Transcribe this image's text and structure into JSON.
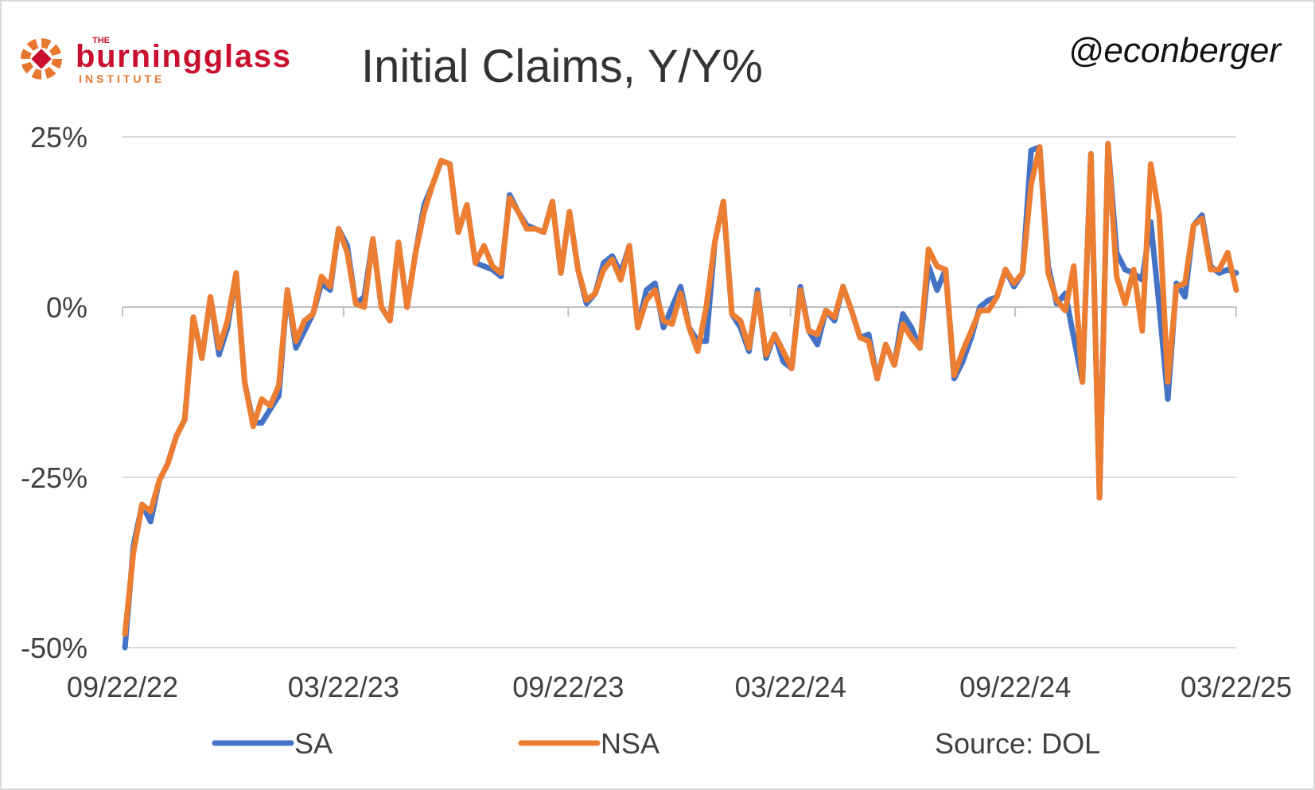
{
  "logo": {
    "top": "THE",
    "brand": "burningglass",
    "sub": "INSTITUTE"
  },
  "handle": "@econberger",
  "source": "Source: DOL",
  "chart_data": {
    "type": "line",
    "title": "Initial Claims, Y/Y%",
    "x": [
      "09/24/22",
      "10/01/22",
      "10/08/22",
      "10/15/22",
      "10/22/22",
      "10/29/22",
      "11/05/22",
      "11/12/22",
      "11/19/22",
      "11/26/22",
      "12/03/22",
      "12/10/22",
      "12/17/22",
      "12/24/22",
      "12/31/22",
      "01/07/23",
      "01/14/23",
      "01/21/23",
      "01/28/23",
      "02/04/23",
      "02/11/23",
      "02/18/23",
      "02/25/23",
      "03/04/23",
      "03/11/23",
      "03/18/23",
      "03/25/23",
      "04/01/23",
      "04/08/23",
      "04/15/23",
      "04/22/23",
      "04/29/23",
      "05/06/23",
      "05/13/23",
      "05/20/23",
      "05/27/23",
      "06/03/23",
      "06/10/23",
      "06/17/23",
      "06/24/23",
      "07/01/23",
      "07/08/23",
      "07/15/23",
      "07/22/23",
      "07/29/23",
      "08/05/23",
      "08/12/23",
      "08/19/23",
      "08/26/23",
      "09/02/23",
      "09/09/23",
      "09/16/23",
      "09/23/23",
      "09/30/23",
      "10/07/23",
      "10/14/23",
      "10/21/23",
      "10/28/23",
      "11/04/23",
      "11/11/23",
      "11/18/23",
      "11/25/23",
      "12/02/23",
      "12/09/23",
      "12/16/23",
      "12/23/23",
      "12/30/23",
      "01/06/24",
      "01/13/24",
      "01/20/24",
      "01/27/24",
      "02/03/24",
      "02/10/24",
      "02/17/24",
      "02/24/24",
      "03/02/24",
      "03/09/24",
      "03/16/24",
      "03/23/24",
      "03/30/24",
      "04/06/24",
      "04/13/24",
      "04/20/24",
      "04/27/24",
      "05/04/24",
      "05/11/24",
      "05/18/24",
      "05/25/24",
      "06/01/24",
      "06/08/24",
      "06/15/24",
      "06/22/24",
      "06/29/24",
      "07/06/24",
      "07/13/24",
      "07/20/24",
      "07/27/24",
      "08/03/24",
      "08/10/24",
      "08/17/24",
      "08/24/24",
      "08/31/24",
      "09/07/24",
      "09/14/24",
      "09/21/24",
      "09/28/24",
      "10/05/24",
      "10/12/24",
      "10/19/24",
      "10/26/24",
      "11/02/24",
      "11/09/24",
      "11/16/24",
      "11/23/24",
      "11/30/24",
      "12/07/24",
      "12/14/24",
      "12/21/24",
      "12/28/24",
      "01/04/25",
      "01/11/25",
      "01/18/25",
      "01/25/25",
      "02/01/25",
      "02/08/25",
      "02/15/25",
      "02/22/25",
      "03/01/25",
      "03/08/25",
      "03/15/25",
      "03/22/25"
    ],
    "series": [
      {
        "name": "SA",
        "color": "#4472c4",
        "values": [
          -50,
          -35,
          -29,
          -31.5,
          -25.5,
          -23,
          -19,
          -16.5,
          -1.5,
          -7.5,
          1.5,
          -7,
          -3,
          5,
          -11,
          -17,
          -17,
          -15,
          -13,
          2.5,
          -6,
          -3.5,
          -1,
          3.5,
          2.5,
          11.5,
          9,
          0.5,
          1.5,
          10,
          0,
          -2,
          9.5,
          0,
          8,
          15,
          18,
          21.5,
          21,
          11,
          15,
          6.5,
          6,
          5.5,
          4.5,
          16.5,
          14,
          12,
          11.5,
          11,
          15.5,
          5,
          14,
          5.5,
          0.5,
          2,
          6.5,
          7.5,
          5,
          9,
          -3,
          2.5,
          3.5,
          -3,
          0,
          3,
          -3,
          -5,
          -5,
          9.5,
          15.5,
          -1,
          -3,
          -6.5,
          2.5,
          -7.5,
          -4,
          -8,
          -9,
          3,
          -3.5,
          -5.5,
          -0.5,
          -2,
          3,
          -0.5,
          -4.5,
          -4,
          -10.5,
          -5.5,
          -8.5,
          -1,
          -3,
          -6,
          6,
          2.5,
          5.5,
          -10.5,
          -8,
          -4.5,
          0,
          1,
          1.5,
          5.5,
          3,
          5,
          23,
          23.5,
          6,
          0.5,
          2,
          -4.5,
          -11,
          22.5,
          -28,
          24,
          8,
          5.5,
          5,
          4,
          12.5,
          0,
          -13.5,
          3.5,
          1.5,
          12,
          13.5,
          6,
          5,
          5.5,
          5
        ]
      },
      {
        "name": "NSA",
        "color": "#ed7d31",
        "values": [
          -48,
          -36,
          -29,
          -30,
          -25.5,
          -23,
          -19,
          -16.5,
          -1.5,
          -7.5,
          1.5,
          -6,
          -2,
          5,
          -11,
          -17.5,
          -13.5,
          -14.5,
          -11.5,
          2.5,
          -5,
          -2,
          -1,
          4.5,
          3,
          11.5,
          8,
          0.5,
          0,
          10,
          0,
          -2,
          9.5,
          0,
          8,
          14,
          18,
          21.5,
          21,
          11,
          15,
          6.5,
          9,
          6,
          5,
          16,
          14,
          11.5,
          11.5,
          11,
          15.5,
          5,
          14,
          5.5,
          1,
          2,
          5.5,
          7,
          4,
          9,
          -3,
          1,
          2.5,
          -2,
          -2.5,
          2,
          -3,
          -6.5,
          0,
          9.5,
          15.5,
          -1,
          -2,
          -6,
          2,
          -7,
          -4,
          -6.5,
          -9,
          2.5,
          -3.5,
          -4,
          -0.5,
          -1.5,
          3,
          -0.5,
          -4.5,
          -5,
          -10.5,
          -5.5,
          -8.5,
          -2.5,
          -4.5,
          -6,
          8.5,
          6,
          5.5,
          -10,
          -6.5,
          -3.5,
          -0.5,
          -0.5,
          1.5,
          5.5,
          3.5,
          5,
          18,
          23.5,
          5,
          1,
          -0.5,
          6,
          -11,
          22.5,
          -28,
          24,
          4.5,
          0.5,
          5.5,
          -3.5,
          21,
          13.5,
          -11,
          3,
          3.5,
          12,
          13,
          5.5,
          5.5,
          8,
          2.5
        ]
      }
    ],
    "xlim": [
      "09/22/22",
      "03/22/25"
    ],
    "xticks": [
      "09/22/22",
      "03/22/23",
      "09/22/23",
      "03/22/24",
      "09/22/24",
      "03/22/25"
    ],
    "ylim": [
      -50,
      25
    ],
    "yticks": [
      {
        "value": -50,
        "label": "-50%"
      },
      {
        "value": -25,
        "label": "-25%"
      },
      {
        "value": 0,
        "label": "0%"
      },
      {
        "value": 25,
        "label": "25%"
      }
    ],
    "grid": true,
    "legend": "bottom"
  }
}
